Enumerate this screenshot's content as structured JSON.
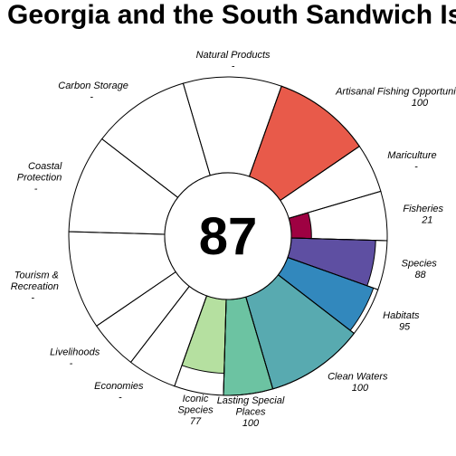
{
  "chart_data": {
    "type": "flower",
    "title": "Georgia and the South Sandwich Is",
    "overall_score": "87",
    "max_score": 100,
    "goals": [
      {
        "lines": [
          "Natural Products"
        ],
        "score": "-",
        "value": null,
        "color": "#ffffff",
        "weight": 1
      },
      {
        "lines": [
          "Artisanal Fishing Opportunities"
        ],
        "score": "100",
        "value": 100,
        "color": "#e85a4a",
        "weight": 1
      },
      {
        "lines": [
          "Mariculture"
        ],
        "score": "-",
        "value": null,
        "color": "#ffffff",
        "weight": 0.5
      },
      {
        "lines": [
          "Fisheries"
        ],
        "score": "21",
        "value": 21,
        "color": "#9e0142",
        "weight": 0.5
      },
      {
        "lines": [
          "Species"
        ],
        "score": "88",
        "value": 88,
        "color": "#5e4fa2",
        "weight": 0.5
      },
      {
        "lines": [
          "Habitats"
        ],
        "score": "95",
        "value": 95,
        "color": "#3288bd",
        "weight": 0.5
      },
      {
        "lines": [
          "Clean Waters"
        ],
        "score": "100",
        "value": 100,
        "color": "#58aab0",
        "weight": 1
      },
      {
        "lines": [
          "Lasting Special",
          "Places"
        ],
        "score": "100",
        "value": 100,
        "color": "#6cc3a2",
        "weight": 0.5
      },
      {
        "lines": [
          "Iconic",
          "Species"
        ],
        "score": "77",
        "value": 77,
        "color": "#b5e0a0",
        "weight": 0.5
      },
      {
        "lines": [
          "Economies"
        ],
        "score": "-",
        "value": null,
        "color": "#ffffff",
        "weight": 0.5
      },
      {
        "lines": [
          "Livelihoods"
        ],
        "score": "-",
        "value": null,
        "color": "#ffffff",
        "weight": 0.5
      },
      {
        "lines": [
          "Tourism &",
          "Recreation"
        ],
        "score": "-",
        "value": null,
        "color": "#ffffff",
        "weight": 1
      },
      {
        "lines": [
          "Coastal",
          "Protection"
        ],
        "score": "-",
        "value": null,
        "color": "#ffffff",
        "weight": 1
      },
      {
        "lines": [
          "Carbon Storage"
        ],
        "score": "-",
        "value": null,
        "color": "#ffffff",
        "weight": 1
      }
    ]
  }
}
